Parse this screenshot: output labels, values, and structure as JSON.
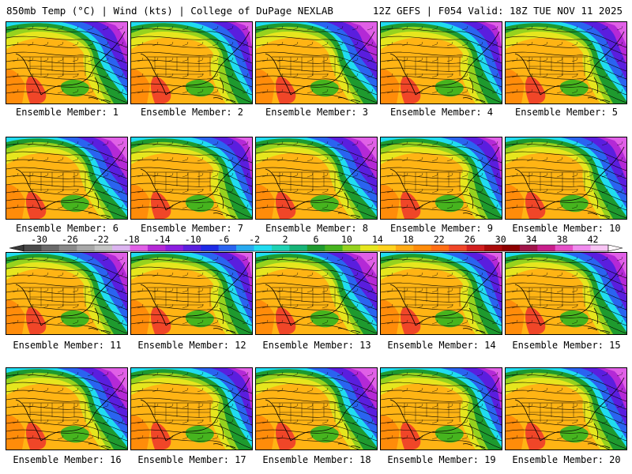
{
  "header": {
    "title": "850mb Temp (°C) | Wind (kts) | College of DuPage NEXLAB",
    "run_info": "12Z GEFS | F054 Valid: 18Z TUE NOV 11 2025"
  },
  "panels": [
    {
      "label": "Ensemble Member: 1",
      "variant": 0
    },
    {
      "label": "Ensemble Member: 2",
      "variant": 1
    },
    {
      "label": "Ensemble Member: 3",
      "variant": 2
    },
    {
      "label": "Ensemble Member: 4",
      "variant": 1
    },
    {
      "label": "Ensemble Member: 5",
      "variant": 0
    },
    {
      "label": "Ensemble Member: 6",
      "variant": 2
    },
    {
      "label": "Ensemble Member: 7",
      "variant": 1
    },
    {
      "label": "Ensemble Member: 8",
      "variant": 2
    },
    {
      "label": "Ensemble Member: 9",
      "variant": 1
    },
    {
      "label": "Ensemble Member: 10",
      "variant": 0
    },
    {
      "label": "Ensemble Member: 11",
      "variant": 0
    },
    {
      "label": "Ensemble Member: 12",
      "variant": 1
    },
    {
      "label": "Ensemble Member: 13",
      "variant": 2
    },
    {
      "label": "Ensemble Member: 14",
      "variant": 1
    },
    {
      "label": "Ensemble Member: 15",
      "variant": 0
    },
    {
      "label": "Ensemble Member: 16",
      "variant": 2
    },
    {
      "label": "Ensemble Member: 17",
      "variant": 1
    },
    {
      "label": "Ensemble Member: 18",
      "variant": 2
    },
    {
      "label": "Ensemble Member: 19",
      "variant": 1
    },
    {
      "label": "Ensemble Member: 20",
      "variant": 0
    }
  ],
  "colorbar": {
    "tick_labels": [
      "-30",
      "-26",
      "-22",
      "-18",
      "-14",
      "-10",
      "-6",
      "-2",
      "2",
      "6",
      "10",
      "14",
      "18",
      "22",
      "26",
      "30",
      "34",
      "38",
      "42"
    ],
    "colors": [
      "#4a4a4a",
      "#6a6a6a",
      "#8a8a8a",
      "#a8a8a8",
      "#c4c4c4",
      "#dcb4f0",
      "#e060e6",
      "#b429d6",
      "#8c1ee0",
      "#5a1ede",
      "#1e2ae6",
      "#2a64f0",
      "#28aaf0",
      "#20dcf0",
      "#1ed2b4",
      "#16b478",
      "#1e9a2e",
      "#46b41e",
      "#96d21e",
      "#e6e61e",
      "#ffd21e",
      "#ffaa14",
      "#ff8c0a",
      "#ff6e14",
      "#f04628",
      "#d21e1e",
      "#aa0a0a",
      "#8c0000",
      "#a0144a",
      "#c81e8c",
      "#e650c8",
      "#f08cee",
      "#f8c4f4"
    ],
    "range_min": -32,
    "range_max": 44
  }
}
